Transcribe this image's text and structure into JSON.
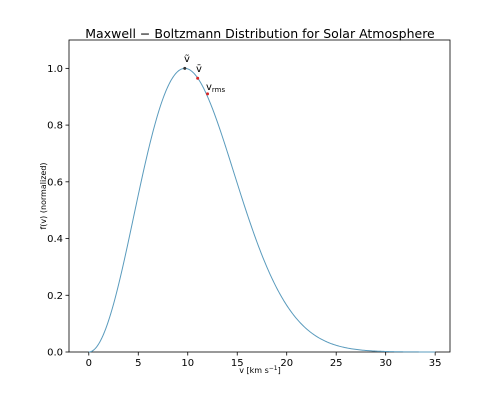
{
  "chart_data": {
    "type": "line",
    "title": "Maxwell − Boltzmann Distribution for Solar Atmosphere",
    "xlabel": "v [km s⁻¹]",
    "ylabel": "f(v) (normalized)",
    "xlim": [
      -2.0,
      36.5
    ],
    "ylim": [
      0.0,
      1.1
    ],
    "xticks": [
      0,
      5,
      10,
      15,
      20,
      25,
      30,
      35
    ],
    "yticks": [
      0.0,
      0.2,
      0.4,
      0.6,
      0.8,
      1.0
    ],
    "grid": false,
    "line_color": "#5a9bbd",
    "marker_color": "#d62728",
    "peak_speed": 9.7,
    "x_range": [
      0,
      35
    ],
    "markers": [
      {
        "name": "ṽ",
        "x": 9.7,
        "y": 1.0
      },
      {
        "name": "v̄",
        "x": 11.0,
        "y": 0.965
      },
      {
        "name": "v_rms",
        "x": 12.0,
        "y": 0.91
      }
    ]
  },
  "labels": {
    "tilde_v": "ṽ",
    "bar_v": "v̄",
    "vrms_main": "v",
    "vrms_sub": "rms",
    "xlabel_main": "v [km s",
    "xlabel_sup": "−1",
    "xlabel_end": "]"
  }
}
